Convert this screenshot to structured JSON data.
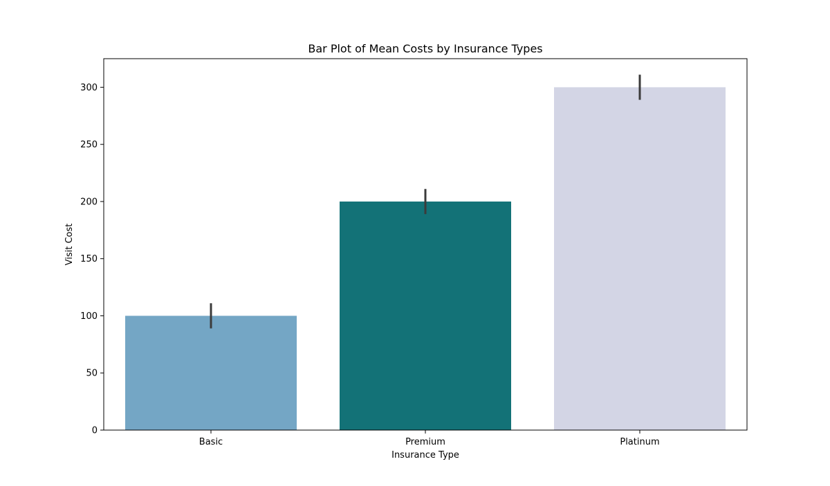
{
  "chart_data": {
    "type": "bar",
    "title": "Bar Plot of Mean Costs by Insurance Types",
    "xlabel": "Insurance Type",
    "ylabel": "Visit Cost",
    "categories": [
      "Basic",
      "Premium",
      "Platinum"
    ],
    "values": [
      100,
      200,
      300
    ],
    "error_low": [
      89,
      189,
      289
    ],
    "error_high": [
      111,
      211,
      311
    ],
    "ylim": [
      0,
      325
    ],
    "yticks": [
      0,
      50,
      100,
      150,
      200,
      250,
      300
    ],
    "grid": false,
    "colors": [
      "#74a6c5",
      "#137277",
      "#d3d5e5"
    ],
    "error_color": "#3b3b3b"
  }
}
